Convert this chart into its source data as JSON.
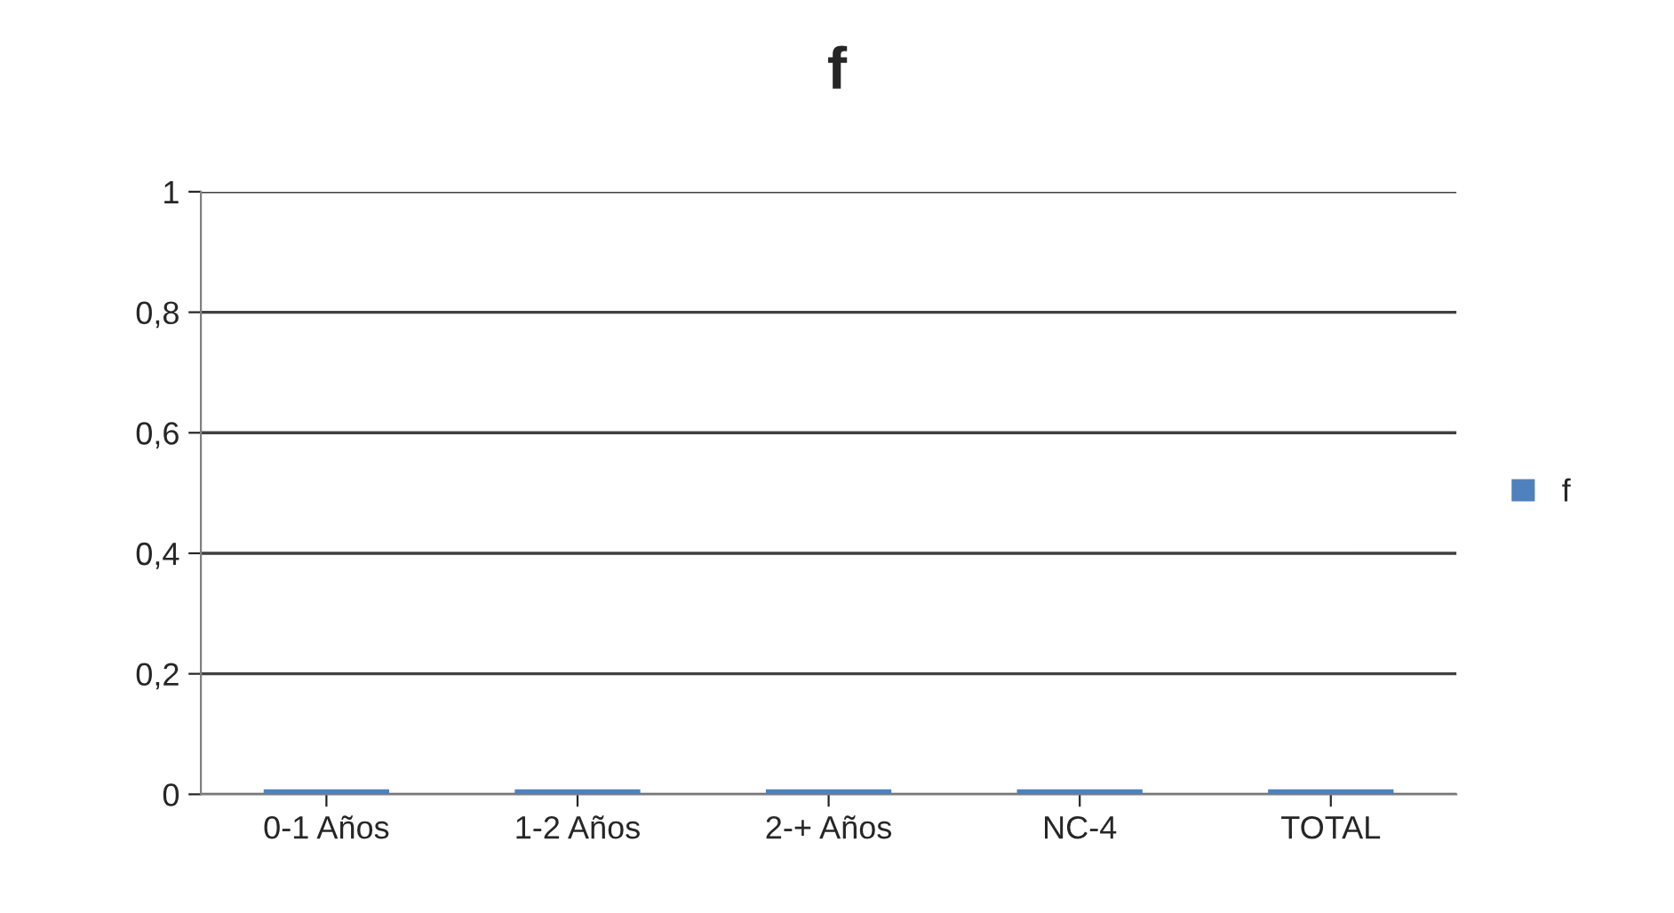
{
  "chart_data": {
    "type": "bar",
    "title": "f",
    "categories": [
      "0-1 Años",
      "1-2 Años",
      "2-+ Años",
      "NC-4",
      "TOTAL"
    ],
    "series": [
      {
        "name": "f",
        "color": "#4f81bd",
        "values": [
          0,
          0,
          0,
          0,
          0
        ]
      }
    ],
    "ylim": [
      0,
      1
    ],
    "yticks": [
      0,
      {
        "value": 0.2,
        "label": "0,2"
      },
      {
        "value": 0.4,
        "label": "0,4"
      },
      {
        "value": 0.6,
        "label": "0,6"
      },
      {
        "value": 0.8,
        "label": "0,8"
      },
      1
    ],
    "grid": "y",
    "legend": "right"
  }
}
